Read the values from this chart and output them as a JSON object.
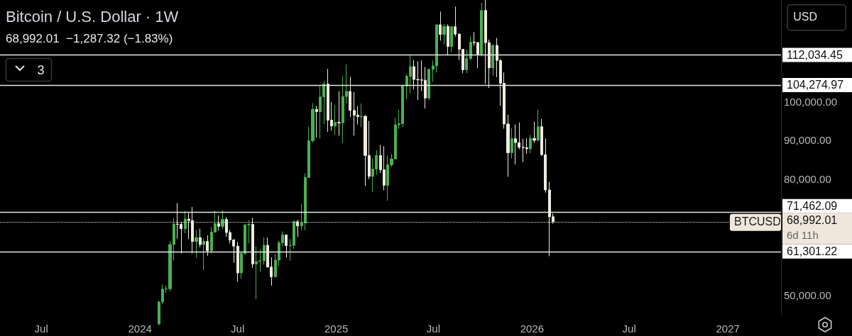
{
  "chart_data": {
    "type": "candlestick",
    "title": "Bitcoin / U.S. Dollar · 1W",
    "subtitle": "68,992.01  −1,287.32 (−1.83%)",
    "x": [
      "2024-02-05",
      "2024-02-12",
      "2024-02-19",
      "2024-02-26",
      "2024-03-04",
      "2024-03-11",
      "2024-03-18",
      "2024-03-25",
      "2024-04-01",
      "2024-04-08",
      "2024-04-15",
      "2024-04-22",
      "2024-04-29",
      "2024-05-06",
      "2024-05-13",
      "2024-05-20",
      "2024-05-27",
      "2024-06-03",
      "2024-06-10",
      "2024-06-17",
      "2024-06-24",
      "2024-07-01",
      "2024-07-08",
      "2024-07-15",
      "2024-07-22",
      "2024-07-29",
      "2024-08-05",
      "2024-08-12",
      "2024-08-19",
      "2024-08-26",
      "2024-09-02",
      "2024-09-09",
      "2024-09-16",
      "2024-09-23",
      "2024-09-30",
      "2024-10-07",
      "2024-10-14",
      "2024-10-21",
      "2024-10-28",
      "2024-11-04",
      "2024-11-11",
      "2024-11-18",
      "2024-11-25",
      "2024-12-02",
      "2024-12-09",
      "2024-12-16",
      "2024-12-23",
      "2024-12-30",
      "2025-01-06",
      "2025-01-13",
      "2025-01-20",
      "2025-01-27",
      "2025-02-03",
      "2025-02-10",
      "2025-02-17",
      "2025-02-24",
      "2025-03-03",
      "2025-03-10",
      "2025-03-17",
      "2025-03-24",
      "2025-03-31",
      "2025-04-07",
      "2025-04-14",
      "2025-04-21",
      "2025-04-28",
      "2025-05-05",
      "2025-05-12",
      "2025-05-19",
      "2025-05-26",
      "2025-06-02",
      "2025-06-09",
      "2025-06-16",
      "2025-06-23",
      "2025-06-30",
      "2025-07-07",
      "2025-07-14",
      "2025-07-21",
      "2025-07-28",
      "2025-08-04",
      "2025-08-11",
      "2025-08-18",
      "2025-08-25",
      "2025-09-01",
      "2025-09-08",
      "2025-09-15",
      "2025-09-22",
      "2025-09-29",
      "2025-10-06",
      "2025-10-13",
      "2025-10-20",
      "2025-10-27",
      "2025-11-03",
      "2025-11-10",
      "2025-11-17",
      "2025-11-24",
      "2025-12-01",
      "2025-12-08",
      "2025-12-15",
      "2025-12-22",
      "2025-12-29",
      "2026-01-05",
      "2026-01-12",
      "2026-01-19",
      "2026-01-26",
      "2026-02-02",
      "2026-02-09"
    ],
    "ohlc": [
      [
        42600,
        48600,
        42300,
        48300
      ],
      [
        48300,
        52800,
        47700,
        51600
      ],
      [
        51600,
        52600,
        50600,
        51700
      ],
      [
        51700,
        64000,
        51000,
        63100
      ],
      [
        63100,
        70000,
        59000,
        68400
      ],
      [
        68400,
        73800,
        64600,
        68300
      ],
      [
        68300,
        68900,
        60800,
        67200
      ],
      [
        67200,
        71800,
        66000,
        69700
      ],
      [
        69700,
        71300,
        64500,
        69300
      ],
      [
        69300,
        72800,
        60800,
        63900
      ],
      [
        63900,
        66900,
        59700,
        64900
      ],
      [
        64900,
        67200,
        62400,
        63100
      ],
      [
        63100,
        64700,
        56500,
        63900
      ],
      [
        63900,
        65500,
        60200,
        61500
      ],
      [
        61500,
        67700,
        60800,
        66300
      ],
      [
        66300,
        71900,
        66300,
        68500
      ],
      [
        68500,
        70600,
        66700,
        67800
      ],
      [
        67800,
        72000,
        67100,
        69600
      ],
      [
        69600,
        70200,
        65100,
        66200
      ],
      [
        66200,
        66900,
        63400,
        64300
      ],
      [
        64300,
        64500,
        58400,
        62700
      ],
      [
        62700,
        63800,
        53500,
        55800
      ],
      [
        55800,
        61000,
        54300,
        60800
      ],
      [
        60800,
        68400,
        60600,
        68200
      ],
      [
        68200,
        69400,
        63400,
        68300
      ],
      [
        68300,
        70000,
        57100,
        58100
      ],
      [
        58100,
        62700,
        49000,
        58700
      ],
      [
        58700,
        61800,
        56100,
        58900
      ],
      [
        58900,
        65000,
        57900,
        62900
      ],
      [
        62900,
        64900,
        57200,
        57300
      ],
      [
        57300,
        59800,
        52500,
        54800
      ],
      [
        54800,
        60700,
        54600,
        59100
      ],
      [
        59100,
        64100,
        57500,
        63600
      ],
      [
        63600,
        66500,
        62700,
        65600
      ],
      [
        65600,
        65600,
        59800,
        62800
      ],
      [
        62800,
        64500,
        58900,
        62900
      ],
      [
        62900,
        69400,
        62000,
        69000
      ],
      [
        69000,
        69500,
        65100,
        67900
      ],
      [
        67900,
        73600,
        66800,
        68700
      ],
      [
        68700,
        81500,
        66800,
        80400
      ],
      [
        80400,
        93500,
        80400,
        89900
      ],
      [
        89900,
        99600,
        89400,
        98000
      ],
      [
        98000,
        98900,
        90800,
        97400
      ],
      [
        97400,
        104000,
        90500,
        101200
      ],
      [
        101200,
        105300,
        94200,
        104500
      ],
      [
        104500,
        108400,
        92200,
        95200
      ],
      [
        95200,
        99900,
        92500,
        93700
      ],
      [
        93700,
        99000,
        91400,
        94600
      ],
      [
        94600,
        102700,
        91200,
        94500
      ],
      [
        94500,
        106500,
        89300,
        101300
      ],
      [
        101300,
        109600,
        99500,
        102600
      ],
      [
        102600,
        106400,
        96000,
        97700
      ],
      [
        97700,
        102500,
        91200,
        96500
      ],
      [
        96500,
        98800,
        94100,
        96100
      ],
      [
        96100,
        99500,
        93400,
        96200
      ],
      [
        96200,
        96500,
        78200,
        86100
      ],
      [
        86100,
        95000,
        80000,
        80700
      ],
      [
        80700,
        85300,
        76600,
        82600
      ],
      [
        82600,
        87500,
        81200,
        86100
      ],
      [
        86100,
        88800,
        81600,
        82400
      ],
      [
        82400,
        88500,
        77100,
        78400
      ],
      [
        78400,
        86100,
        74400,
        83700
      ],
      [
        83700,
        86500,
        83100,
        85200
      ],
      [
        85200,
        95800,
        85100,
        94000
      ],
      [
        94000,
        97900,
        92900,
        94300
      ],
      [
        94300,
        104300,
        93400,
        104000
      ],
      [
        104000,
        107100,
        100700,
        106500
      ],
      [
        106500,
        112000,
        102100,
        109000
      ],
      [
        109000,
        110700,
        103100,
        105700
      ],
      [
        105700,
        110400,
        100400,
        105600
      ],
      [
        105600,
        110600,
        102700,
        105500
      ],
      [
        105500,
        108900,
        98200,
        100900
      ],
      [
        100900,
        108500,
        100400,
        108300
      ],
      [
        108300,
        110600,
        105100,
        109200
      ],
      [
        109200,
        119900,
        107500,
        119800
      ],
      [
        119800,
        123200,
        115700,
        117300
      ],
      [
        117300,
        120000,
        114700,
        119400
      ],
      [
        119400,
        119900,
        111900,
        114200
      ],
      [
        114200,
        119300,
        112700,
        119300
      ],
      [
        119300,
        124500,
        116800,
        117400
      ],
      [
        117400,
        117600,
        110700,
        113500
      ],
      [
        113500,
        113500,
        107300,
        108200
      ],
      [
        108200,
        113400,
        107300,
        111100
      ],
      [
        111100,
        116800,
        110600,
        115300
      ],
      [
        115300,
        117900,
        114400,
        115200
      ],
      [
        115200,
        115400,
        108600,
        112200
      ],
      [
        112200,
        125500,
        111600,
        123500
      ],
      [
        123500,
        126200,
        104600,
        115200
      ],
      [
        115200,
        116000,
        103500,
        108700
      ],
      [
        108700,
        114800,
        106700,
        114500
      ],
      [
        114500,
        116400,
        106300,
        110600
      ],
      [
        110600,
        110900,
        98900,
        104700
      ],
      [
        104700,
        107500,
        93000,
        94200
      ],
      [
        94200,
        96600,
        80600,
        86800
      ],
      [
        86800,
        93100,
        85300,
        90400
      ],
      [
        90400,
        94100,
        83800,
        89400
      ],
      [
        89400,
        94600,
        87700,
        88200
      ],
      [
        88200,
        90400,
        84400,
        88100
      ],
      [
        88100,
        90500,
        86500,
        87800
      ],
      [
        87800,
        91400,
        86700,
        90500
      ],
      [
        90500,
        94800,
        89300,
        90000
      ],
      [
        90000,
        97900,
        89900,
        93500
      ],
      [
        93500,
        95500,
        86000,
        86300
      ],
      [
        86300,
        90500,
        76500,
        77200
      ],
      [
        77200,
        79300,
        60100,
        70279.33
      ],
      [
        70279.33,
        71100,
        68500,
        68992.01
      ]
    ],
    "xlim": [
      "2023-04-15",
      "2027-04-10"
    ],
    "xticks": [
      {
        "value": "2023-07-01",
        "label": "Jul"
      },
      {
        "value": "2024-01-01",
        "label": "2024"
      },
      {
        "value": "2024-07-01",
        "label": "Jul"
      },
      {
        "value": "2025-01-01",
        "label": "2025"
      },
      {
        "value": "2025-07-01",
        "label": "Jul"
      },
      {
        "value": "2026-01-01",
        "label": "2026"
      },
      {
        "value": "2026-07-01",
        "label": "Jul"
      },
      {
        "value": "2027-01-01",
        "label": "2027"
      }
    ],
    "ylim": [
      45000,
      126200
    ],
    "yticks": [
      {
        "value": 50000,
        "label": "50,000.00"
      },
      {
        "value": 80000,
        "label": "80,000.00"
      },
      {
        "value": 90000,
        "label": "90,000.00"
      },
      {
        "value": 100000,
        "label": "100,000.00"
      }
    ],
    "ref_lines": [
      {
        "axis": "y",
        "value": 112034.45,
        "label": "112,034.45"
      },
      {
        "axis": "y",
        "value": 104274.97,
        "label": "104,274.97"
      },
      {
        "axis": "y",
        "value": 71462.09,
        "label": "71,462.09"
      },
      {
        "axis": "y",
        "value": 68992.01,
        "label": "68,992.01",
        "line_style": "dotted"
      },
      {
        "axis": "y",
        "value": 61301.22,
        "label": "61,301.22"
      }
    ],
    "annotations": [
      "BTCUSD",
      "6d 11h",
      "USD",
      "3"
    ],
    "grid": false
  }
}
